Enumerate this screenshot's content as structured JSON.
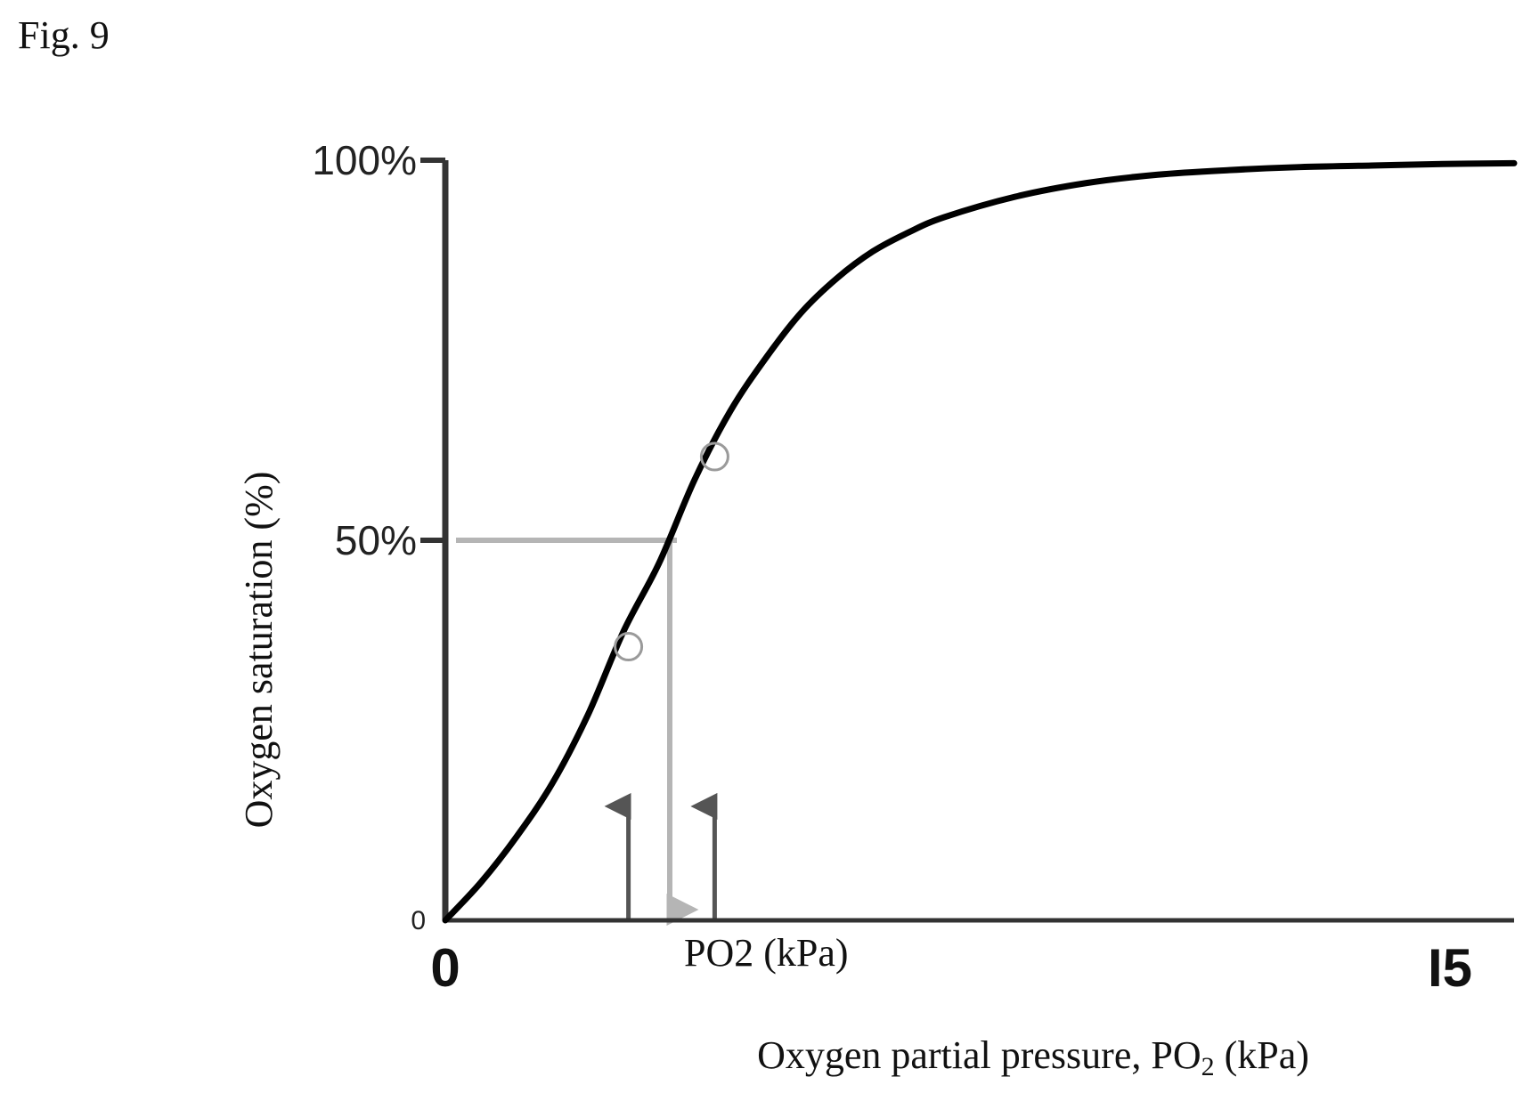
{
  "figure_label": "Fig. 9",
  "chart_data": {
    "type": "line",
    "xlabel": "Oxygen partial pressure, PO",
    "xlabel_subscript": "2",
    "xlabel_unit": " (kPa)",
    "ylabel": "Oxygen saturation (%)",
    "xlim": [
      0,
      15
    ],
    "ylim": [
      0,
      100
    ],
    "x_tick_labels": [
      {
        "value": 0,
        "label": "0"
      },
      {
        "value": 14.1,
        "label": "I5"
      }
    ],
    "y_tick_labels": [
      {
        "value": 100,
        "label": "100%"
      },
      {
        "value": 50,
        "label": "50%"
      },
      {
        "value": 0,
        "label": "0"
      }
    ],
    "p50_annotation": {
      "x": 3.15,
      "y": 50,
      "label": "PO2 (kPa)"
    },
    "series": [
      {
        "x": [
          0,
          0.5,
          1.0,
          1.5,
          2.0,
          2.5,
          3.0,
          3.5,
          4.0,
          4.5,
          5.0,
          5.5,
          6.0,
          6.5,
          7.0,
          8.0,
          9.0,
          10.0,
          11.0,
          12.0,
          13.0,
          14.0,
          15.0
        ],
        "y": [
          0,
          5,
          11,
          18,
          27,
          38,
          47,
          58,
          67,
          74,
          80,
          84.5,
          88,
          90.5,
          92.5,
          95.2,
          97,
          98.1,
          98.7,
          99.1,
          99.3,
          99.5,
          99.6
        ]
      }
    ],
    "highlight_points": [
      {
        "x": 2.57,
        "y": 36
      },
      {
        "x": 3.78,
        "y": 61
      }
    ],
    "arrows": [
      {
        "x": 2.57,
        "direction": "up",
        "y_from": 0,
        "y_to": 15
      },
      {
        "x": 3.15,
        "direction": "down",
        "y_from": 50,
        "y_to": 0
      },
      {
        "x": 3.78,
        "direction": "up",
        "y_from": 0,
        "y_to": 15
      }
    ],
    "colors": {
      "curve": "#000000",
      "axis": "#333333",
      "guide": "#b5b5b5",
      "arrow": "#555555",
      "marker": "#9a9a9a"
    }
  }
}
